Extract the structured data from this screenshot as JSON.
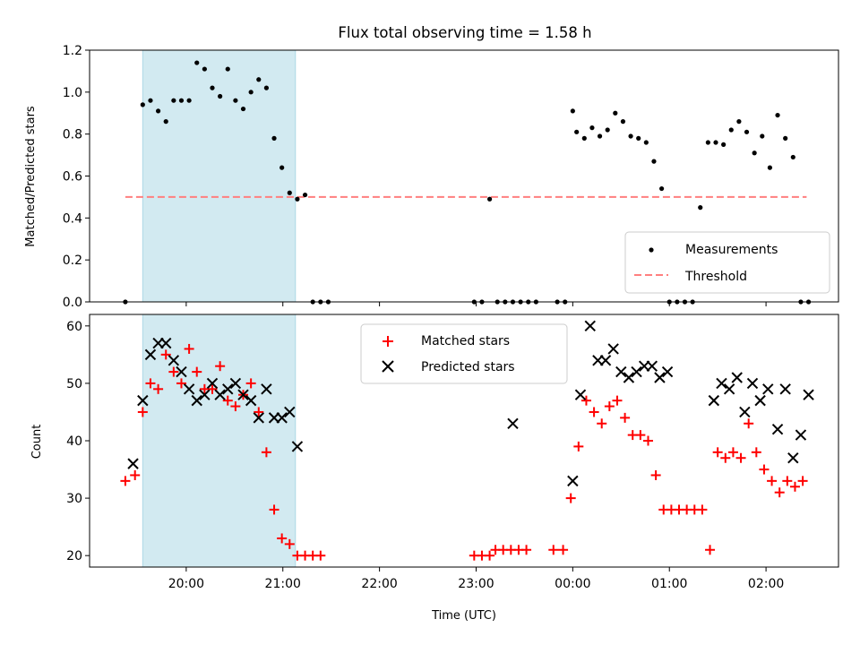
{
  "figure": {
    "title": "Flux total observing time = 1.58 h",
    "xlabel": "Time (UTC)"
  },
  "colors": {
    "shade": "#add8e6",
    "measurement": "#000000",
    "threshold": "#ff7f7f",
    "matched": "#ff0000",
    "predicted": "#000000"
  },
  "chart_data": [
    {
      "type": "scatter",
      "ylabel": "Matched/Predicted stars",
      "xlim_hours": [
        19.0,
        26.75
      ],
      "ylim": [
        0,
        1.2
      ],
      "yticks": [
        "0.0",
        "0.2",
        "0.4",
        "0.6",
        "0.8",
        "1.0",
        "1.2"
      ],
      "xticks_hours": [
        20,
        21,
        22,
        23,
        24,
        25,
        26
      ],
      "shaded_region_hours": [
        19.55,
        21.13
      ],
      "legend": {
        "position": "lower right",
        "entries": [
          "Measurements",
          "Threshold"
        ]
      },
      "threshold": {
        "name": "Threshold",
        "value": 0.5,
        "x_range_hours": [
          19.37,
          26.42
        ]
      },
      "series": [
        {
          "name": "Measurements",
          "marker": "dot",
          "x_hours": [
            19.37,
            19.55,
            19.63,
            19.71,
            19.79,
            19.87,
            19.95,
            20.03,
            20.11,
            20.19,
            20.27,
            20.35,
            20.43,
            20.51,
            20.59,
            20.67,
            20.75,
            20.83,
            20.91,
            20.99,
            21.07,
            21.15,
            21.23,
            21.31,
            21.39,
            21.47,
            22.98,
            23.06,
            23.14,
            23.22,
            23.3,
            23.38,
            23.46,
            23.54,
            23.62,
            23.84,
            23.92,
            24.0,
            24.04,
            24.12,
            24.2,
            24.28,
            24.36,
            24.44,
            24.52,
            24.6,
            24.68,
            24.76,
            24.84,
            24.92,
            25.0,
            25.08,
            25.16,
            25.24,
            25.32,
            25.4,
            25.48,
            25.56,
            25.64,
            25.72,
            25.8,
            25.88,
            25.96,
            26.04,
            26.12,
            26.2,
            26.28,
            26.36,
            26.44
          ],
          "values": [
            0.0,
            0.94,
            0.96,
            0.91,
            0.86,
            0.96,
            0.96,
            0.96,
            1.14,
            1.11,
            1.02,
            0.98,
            1.11,
            0.96,
            0.92,
            1.0,
            1.06,
            1.02,
            0.78,
            0.64,
            0.52,
            0.49,
            0.51,
            0.0,
            0.0,
            0.0,
            0.0,
            0.0,
            0.49,
            0.0,
            0.0,
            0.0,
            0.0,
            0.0,
            0.0,
            0.0,
            0.0,
            0.91,
            0.81,
            0.78,
            0.83,
            0.79,
            0.82,
            0.9,
            0.86,
            0.79,
            0.78,
            0.76,
            0.67,
            0.54,
            0.0,
            0.0,
            0.0,
            0.0,
            0.45,
            0.76,
            0.76,
            0.75,
            0.82,
            0.86,
            0.81,
            0.71,
            0.79,
            0.64,
            0.89,
            0.78,
            0.69,
            0.0,
            0.0
          ]
        }
      ]
    },
    {
      "type": "scatter",
      "ylabel": "Count",
      "xlabel": "Time (UTC)",
      "xlim_hours": [
        19.0,
        26.75
      ],
      "ylim": [
        18,
        62
      ],
      "yticks": [
        "20",
        "30",
        "40",
        "50",
        "60"
      ],
      "xticks_hours": [
        20,
        21,
        22,
        23,
        24,
        25,
        26
      ],
      "xtick_labels": [
        "20:00",
        "21:00",
        "22:00",
        "23:00",
        "00:00",
        "01:00",
        "02:00"
      ],
      "shaded_region_hours": [
        19.55,
        21.13
      ],
      "legend": {
        "position": "upper center",
        "entries": [
          "Matched stars",
          "Predicted stars"
        ]
      },
      "series": [
        {
          "name": "Matched stars",
          "marker": "plus",
          "points": [
            [
              19.37,
              33
            ],
            [
              19.47,
              34
            ],
            [
              19.55,
              45
            ],
            [
              19.63,
              50
            ],
            [
              19.71,
              49
            ],
            [
              19.79,
              55
            ],
            [
              19.87,
              52
            ],
            [
              19.95,
              50
            ],
            [
              20.03,
              56
            ],
            [
              20.11,
              52
            ],
            [
              20.19,
              49
            ],
            [
              20.27,
              49
            ],
            [
              20.35,
              53
            ],
            [
              20.43,
              47
            ],
            [
              20.51,
              46
            ],
            [
              20.59,
              48
            ],
            [
              20.67,
              50
            ],
            [
              20.75,
              45
            ],
            [
              20.83,
              38
            ],
            [
              20.91,
              28
            ],
            [
              20.99,
              23
            ],
            [
              21.07,
              22
            ],
            [
              21.15,
              20
            ],
            [
              21.23,
              20
            ],
            [
              21.31,
              20
            ],
            [
              21.39,
              20
            ],
            [
              22.98,
              20
            ],
            [
              23.06,
              20
            ],
            [
              23.14,
              20
            ],
            [
              23.2,
              21
            ],
            [
              23.28,
              21
            ],
            [
              23.36,
              21
            ],
            [
              23.44,
              21
            ],
            [
              23.52,
              21
            ],
            [
              23.8,
              21
            ],
            [
              23.9,
              21
            ],
            [
              23.98,
              30
            ],
            [
              24.06,
              39
            ],
            [
              24.14,
              47
            ],
            [
              24.22,
              45
            ],
            [
              24.3,
              43
            ],
            [
              24.38,
              46
            ],
            [
              24.46,
              47
            ],
            [
              24.54,
              44
            ],
            [
              24.62,
              41
            ],
            [
              24.7,
              41
            ],
            [
              24.78,
              40
            ],
            [
              24.86,
              34
            ],
            [
              24.94,
              28
            ],
            [
              25.02,
              28
            ],
            [
              25.1,
              28
            ],
            [
              25.18,
              28
            ],
            [
              25.26,
              28
            ],
            [
              25.34,
              28
            ],
            [
              25.42,
              21
            ],
            [
              25.5,
              38
            ],
            [
              25.58,
              37
            ],
            [
              25.66,
              38
            ],
            [
              25.74,
              37
            ],
            [
              25.82,
              43
            ],
            [
              25.9,
              38
            ],
            [
              25.98,
              35
            ],
            [
              26.06,
              33
            ],
            [
              26.14,
              31
            ],
            [
              26.22,
              33
            ],
            [
              26.3,
              32
            ],
            [
              26.38,
              33
            ]
          ]
        },
        {
          "name": "Predicted stars",
          "marker": "x",
          "points": [
            [
              19.45,
              36
            ],
            [
              19.55,
              47
            ],
            [
              19.63,
              55
            ],
            [
              19.71,
              57
            ],
            [
              19.79,
              57
            ],
            [
              19.87,
              54
            ],
            [
              19.95,
              52
            ],
            [
              20.03,
              49
            ],
            [
              20.11,
              47
            ],
            [
              20.19,
              48
            ],
            [
              20.27,
              50
            ],
            [
              20.35,
              48
            ],
            [
              20.43,
              49
            ],
            [
              20.51,
              50
            ],
            [
              20.59,
              48
            ],
            [
              20.67,
              47
            ],
            [
              20.75,
              44
            ],
            [
              20.83,
              49
            ],
            [
              20.91,
              44
            ],
            [
              20.99,
              44
            ],
            [
              21.07,
              45
            ],
            [
              21.15,
              39
            ],
            [
              23.38,
              43
            ],
            [
              24.0,
              33
            ],
            [
              24.08,
              48
            ],
            [
              24.18,
              60
            ],
            [
              24.26,
              54
            ],
            [
              24.34,
              54
            ],
            [
              24.42,
              56
            ],
            [
              24.5,
              52
            ],
            [
              24.58,
              51
            ],
            [
              24.66,
              52
            ],
            [
              24.74,
              53
            ],
            [
              24.82,
              53
            ],
            [
              24.9,
              51
            ],
            [
              24.98,
              52
            ],
            [
              25.46,
              47
            ],
            [
              25.54,
              50
            ],
            [
              25.62,
              49
            ],
            [
              25.7,
              51
            ],
            [
              25.78,
              45
            ],
            [
              25.86,
              50
            ],
            [
              25.94,
              47
            ],
            [
              26.02,
              49
            ],
            [
              26.12,
              42
            ],
            [
              26.2,
              49
            ],
            [
              26.28,
              37
            ],
            [
              26.36,
              41
            ],
            [
              26.44,
              48
            ]
          ]
        }
      ]
    }
  ]
}
